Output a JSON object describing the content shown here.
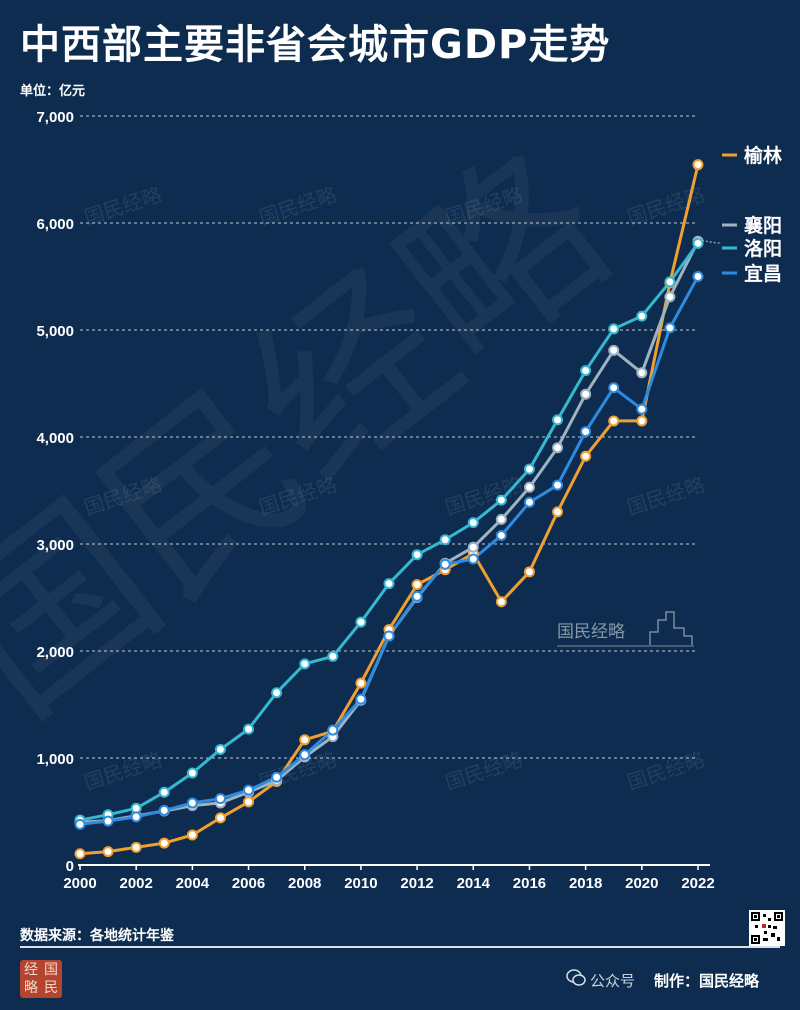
{
  "title": "中西部主要非省会城市GDP走势",
  "unit": "单位：亿元",
  "source": "数据来源：各地统计年鉴",
  "credit": "制作：国民经略",
  "credit_wechat": "公众号",
  "logo_text": [
    "经",
    "国",
    "略",
    "民"
  ],
  "watermark_text": "国民经略",
  "chart_data": {
    "type": "line",
    "x": [
      2000,
      2001,
      2002,
      2003,
      2004,
      2005,
      2006,
      2007,
      2008,
      2009,
      2010,
      2011,
      2012,
      2013,
      2014,
      2015,
      2016,
      2017,
      2018,
      2019,
      2020,
      2021,
      2022
    ],
    "xticks": [
      2000,
      2002,
      2004,
      2006,
      2008,
      2010,
      2012,
      2014,
      2016,
      2018,
      2020,
      2022
    ],
    "ylim": [
      0,
      7000
    ],
    "yticks": [
      0,
      1000,
      2000,
      3000,
      4000,
      5000,
      6000,
      7000
    ],
    "ytick_labels": [
      "0",
      "1,000",
      "2,000",
      "3,000",
      "4,000",
      "5,000",
      "6,000",
      "7,000"
    ],
    "grid": true,
    "legend_position": "right",
    "series": [
      {
        "name": "榆林",
        "color": "#f0a030",
        "values": [
          105,
          125,
          165,
          205,
          280,
          440,
          590,
          780,
          1170,
          1250,
          1700,
          2200,
          2620,
          2760,
          2910,
          2460,
          2740,
          3300,
          3820,
          4150,
          4150,
          5440,
          6545
        ]
      },
      {
        "name": "襄阳",
        "color": "#9fb3c3",
        "values": [
          400,
          415,
          460,
          505,
          555,
          580,
          680,
          790,
          1010,
          1200,
          1540,
          2140,
          2500,
          2820,
          2970,
          3230,
          3530,
          3900,
          4400,
          4810,
          4600,
          5310,
          5830
        ]
      },
      {
        "name": "洛阳",
        "color": "#35b8d0",
        "values": [
          420,
          470,
          530,
          680,
          860,
          1080,
          1270,
          1610,
          1880,
          1950,
          2270,
          2630,
          2900,
          3040,
          3200,
          3410,
          3700,
          4160,
          4620,
          5010,
          5130,
          5450,
          5810
        ]
      },
      {
        "name": "宜昌",
        "color": "#2f8be0",
        "values": [
          380,
          410,
          450,
          510,
          580,
          620,
          700,
          820,
          1030,
          1260,
          1550,
          2140,
          2510,
          2810,
          2860,
          3080,
          3390,
          3550,
          4050,
          4460,
          4260,
          5020,
          5500
        ]
      }
    ]
  }
}
